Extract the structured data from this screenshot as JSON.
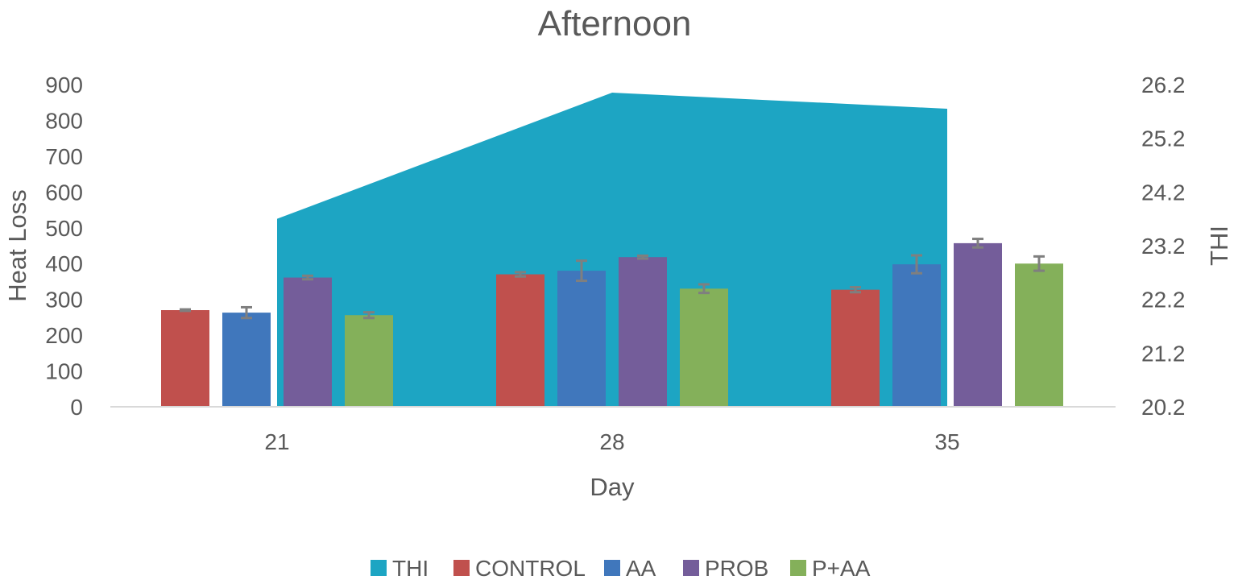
{
  "chart_data": {
    "type": "bar",
    "title": "Afternoon",
    "xlabel": "Day",
    "ylabel": "Heat Loss",
    "y2label": "THI",
    "categories": [
      "21",
      "28",
      "35"
    ],
    "ylim": [
      0,
      900
    ],
    "yticks": [
      "0",
      "100",
      "200",
      "300",
      "400",
      "500",
      "600",
      "700",
      "800",
      "900"
    ],
    "y2lim": [
      20.2,
      26.2
    ],
    "y2ticks": [
      "20.2",
      "21.2",
      "22.2",
      "23.2",
      "24.2",
      "25.2",
      "26.2"
    ],
    "grid": false,
    "legend_position": "bottom",
    "area_series": {
      "name": "THI",
      "axis": "secondary",
      "color": "#1DA5C3",
      "values": [
        23.7,
        26.05,
        25.75
      ]
    },
    "series": [
      {
        "name": "CONTROL",
        "color": "#C0504D",
        "values": [
          270,
          370,
          327
        ],
        "errors": [
          2,
          6,
          7
        ]
      },
      {
        "name": "AA",
        "color": "#4077BC",
        "values": [
          263,
          380,
          398
        ],
        "errors": [
          15,
          28,
          25
        ]
      },
      {
        "name": "PROB",
        "color": "#745D9A",
        "values": [
          361,
          418,
          457
        ],
        "errors": [
          5,
          4,
          12
        ]
      },
      {
        "name": "P+AA",
        "color": "#84B05A",
        "values": [
          256,
          330,
          400
        ],
        "errors": [
          8,
          12,
          20
        ]
      }
    ]
  }
}
